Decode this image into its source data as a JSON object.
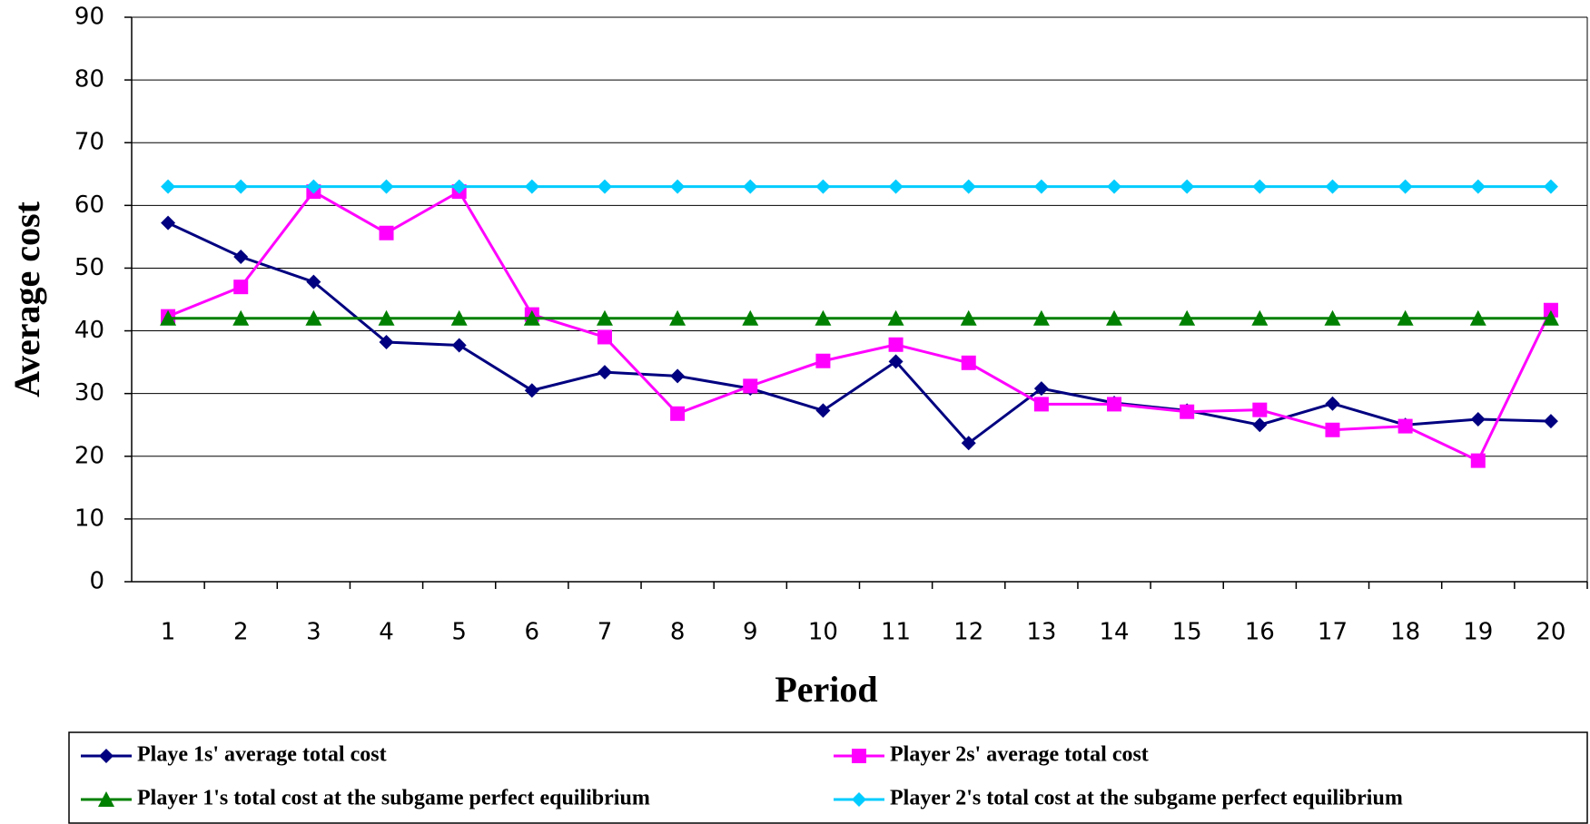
{
  "chart_data": {
    "type": "line",
    "x_label": "Period",
    "y_label": "Average cost",
    "categories": [
      "1",
      "2",
      "3",
      "4",
      "5",
      "6",
      "7",
      "8",
      "9",
      "10",
      "11",
      "12",
      "13",
      "14",
      "15",
      "16",
      "17",
      "18",
      "19",
      "20"
    ],
    "series": [
      {
        "name": "Playe 1s' average total cost",
        "color": "#000080",
        "marker": "diamond",
        "values": [
          57.2,
          51.8,
          47.8,
          38.2,
          37.7,
          30.5,
          33.4,
          32.8,
          30.8,
          27.3,
          35.1,
          22.1,
          30.8,
          28.5,
          27.3,
          25.0,
          28.4,
          25.0,
          25.9,
          25.6
        ]
      },
      {
        "name": "Player 2s' average total cost",
        "color": "#ff00ff",
        "marker": "square",
        "values": [
          42.3,
          47.0,
          62.2,
          55.6,
          62.2,
          42.6,
          39.0,
          26.8,
          31.2,
          35.2,
          37.8,
          34.9,
          28.3,
          28.3,
          27.1,
          27.4,
          24.2,
          24.8,
          19.3,
          43.3
        ]
      },
      {
        "name": "Player 1's total cost at the subgame perfect equilibrium",
        "color": "#008000",
        "marker": "triangle",
        "values": [
          42,
          42,
          42,
          42,
          42,
          42,
          42,
          42,
          42,
          42,
          42,
          42,
          42,
          42,
          42,
          42,
          42,
          42,
          42,
          42
        ]
      },
      {
        "name": "Player 2's total cost at the subgame perfect equilibrium",
        "color": "#00ccff",
        "marker": "diamond",
        "values": [
          63,
          63,
          63,
          63,
          63,
          63,
          63,
          63,
          63,
          63,
          63,
          63,
          63,
          63,
          63,
          63,
          63,
          63,
          63,
          63
        ]
      }
    ],
    "ylim": [
      0,
      90
    ],
    "yticks": [
      0,
      10,
      20,
      30,
      40,
      50,
      60,
      70,
      80,
      90
    ],
    "grid": true,
    "legend": "bottom"
  }
}
